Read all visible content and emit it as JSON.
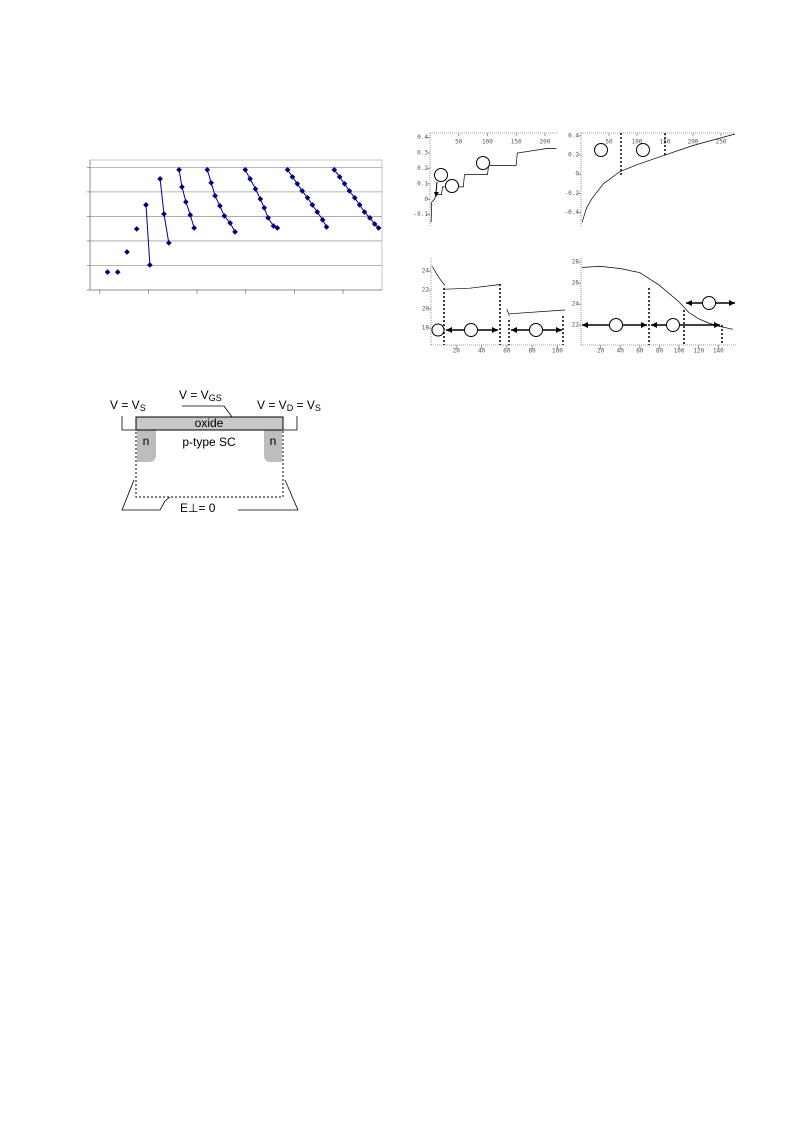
{
  "chart_data": [
    {
      "type": "line",
      "markers": true,
      "grid": true,
      "xlim": [
        -0.2,
        5.8
      ],
      "ylim": [
        0,
        5.3
      ],
      "xticks": [
        0,
        1,
        2,
        3,
        4,
        5
      ],
      "yticks": [
        0,
        1,
        2,
        3,
        4,
        5
      ],
      "x": [
        0.16,
        null,
        0.37,
        null,
        0.56,
        null,
        0.76,
        null,
        0.95,
        1.03,
        null,
        1.24,
        1.32,
        1.42,
        null,
        1.63,
        1.69,
        1.77,
        1.86,
        1.94,
        null,
        2.21,
        2.29,
        2.37,
        2.47,
        2.56,
        2.68,
        2.78,
        null,
        2.99,
        3.09,
        3.2,
        3.3,
        3.38,
        3.46,
        3.57,
        3.65,
        null,
        3.86,
        3.96,
        4.06,
        4.16,
        4.27,
        4.37,
        4.47,
        4.58,
        4.66,
        null,
        4.82,
        4.93,
        5.03,
        5.13,
        5.24,
        5.34,
        5.44,
        5.55,
        5.65,
        5.73
      ],
      "series": [
        {
          "color": "#000080",
          "values": [
            0.73,
            null,
            0.73,
            null,
            1.55,
            null,
            2.49,
            null,
            3.47,
            1.02,
            null,
            4.53,
            3.1,
            1.92,
            null,
            4.9,
            4.2,
            3.59,
            3.06,
            2.53,
            null,
            4.9,
            4.37,
            3.84,
            3.43,
            3.02,
            2.73,
            2.37,
            null,
            4.9,
            4.53,
            4.12,
            3.71,
            3.35,
            2.94,
            2.61,
            2.53,
            null,
            4.9,
            4.61,
            4.33,
            4.04,
            3.76,
            3.47,
            3.18,
            2.86,
            2.57,
            null,
            4.9,
            4.61,
            4.33,
            4.04,
            3.76,
            3.47,
            3.18,
            2.94,
            2.69,
            2.53
          ]
        }
      ]
    },
    {
      "type": "line",
      "xaxis": "top",
      "xlim": [
        0,
        221
      ],
      "ylim": [
        -0.18,
        0.43
      ],
      "xticks": [
        50,
        100,
        150,
        200
      ],
      "yticks": [
        0.4,
        0.3,
        0.2,
        0.1,
        0,
        -0.1
      ],
      "x": [
        2,
        3,
        8,
        10,
        20,
        22,
        58,
        60,
        100,
        102,
        150,
        152,
        205,
        220
      ],
      "series": [
        {
          "color": "#000000",
          "values": [
            -0.15,
            -0.02,
            0,
            0.03,
            0.03,
            0.08,
            0.08,
            0.16,
            0.16,
            0.22,
            0.22,
            0.3,
            0.33,
            0.33
          ]
        }
      ]
    },
    {
      "type": "line",
      "xaxis": "top",
      "xlim": [
        0,
        275
      ],
      "ylim": [
        -0.55,
        0.43
      ],
      "xticks": [
        50,
        100,
        150,
        200,
        250
      ],
      "yticks": [
        0.4,
        0.2,
        0,
        -0.2,
        -0.4
      ],
      "x": [
        2,
        10,
        20,
        40,
        70,
        100,
        150,
        200,
        275
      ],
      "series": [
        {
          "color": "#000000",
          "values": [
            -0.5,
            -0.35,
            -0.25,
            -0.1,
            0.03,
            0.1,
            0.2,
            0.3,
            0.42
          ]
        }
      ]
    },
    {
      "type": "line",
      "xaxis": "bottom",
      "xlim": [
        0,
        106
      ],
      "ylim": [
        16.2,
        25.4
      ],
      "xticks": [
        20,
        40,
        60,
        80,
        100
      ],
      "yticks": [
        24,
        22,
        20,
        18
      ],
      "x": [
        1,
        4,
        8,
        11,
        null,
        11,
        30,
        55,
        null,
        60,
        62,
        null,
        62,
        106
      ],
      "series": [
        {
          "color": "#000000",
          "values": [
            24.5,
            23.8,
            23,
            22.5,
            null,
            22.1,
            22.2,
            22.6,
            null,
            20,
            19.3,
            null,
            19.5,
            19.9
          ]
        }
      ]
    },
    {
      "type": "line",
      "xaxis": "bottom",
      "xlim": [
        0,
        159
      ],
      "ylim": [
        20.1,
        28.4
      ],
      "xticks": [
        20,
        40,
        60,
        80,
        100,
        120,
        140
      ],
      "yticks": [
        28,
        26,
        24,
        22
      ],
      "x": [
        1,
        20,
        40,
        60,
        80,
        100,
        110,
        120,
        130,
        140,
        155
      ],
      "series": [
        {
          "color": "#000000",
          "values": [
            27.5,
            27.6,
            27.4,
            27,
            25.8,
            24.2,
            23.2,
            22.6,
            22.2,
            21.9,
            21.6
          ]
        }
      ]
    }
  ],
  "diagram": {
    "source": {
      "text": "V = V",
      "subscript": "S"
    },
    "gate": {
      "text": "V = V",
      "subscript": "GS"
    },
    "drain": {
      "text": "V = V",
      "subscript": "D",
      "text2": " = V",
      "subscript2": "S"
    },
    "oxide": "oxide",
    "substrate": "p-type SC",
    "n_left": "n",
    "n_right": "n",
    "boundary": "E⊥= 0"
  }
}
